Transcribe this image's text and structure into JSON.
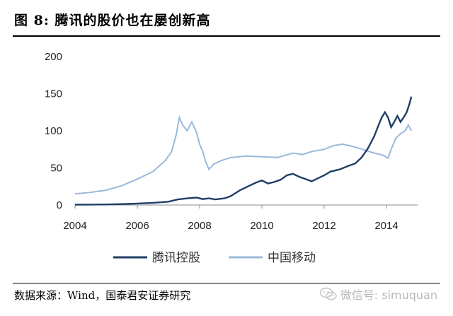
{
  "header": {
    "title": "图 8: 腾讯的股价也在屡创新高"
  },
  "footer": {
    "source": "数据来源：Wind，国泰君安证券研究",
    "watermark": "微信号: simuquan"
  },
  "colors": {
    "tencent": "#1f3f66",
    "china_mobile": "#9bb9db",
    "axis": "#8c8c8c"
  },
  "chart_data": {
    "type": "line",
    "title": "",
    "xlabel": "",
    "ylabel": "",
    "xlim": [
      2004,
      2015
    ],
    "ylim": [
      0,
      200
    ],
    "y_ticks": [
      0,
      50,
      100,
      150,
      200
    ],
    "x_ticks": [
      2004,
      2006,
      2008,
      2010,
      2012,
      2014
    ],
    "grid": false,
    "legend_position": "bottom",
    "series": [
      {
        "name": "腾讯控股",
        "points": [
          [
            2004.0,
            0.5
          ],
          [
            2004.5,
            0.6
          ],
          [
            2005.0,
            0.8
          ],
          [
            2005.5,
            1.2
          ],
          [
            2006.0,
            2.0
          ],
          [
            2006.5,
            3.0
          ],
          [
            2007.0,
            4.5
          ],
          [
            2007.3,
            7.5
          ],
          [
            2007.6,
            9.0
          ],
          [
            2007.9,
            10.0
          ],
          [
            2008.1,
            8.0
          ],
          [
            2008.3,
            9.0
          ],
          [
            2008.5,
            7.5
          ],
          [
            2008.8,
            9.0
          ],
          [
            2009.0,
            12.0
          ],
          [
            2009.3,
            20.0
          ],
          [
            2009.6,
            26.0
          ],
          [
            2009.8,
            30.0
          ],
          [
            2010.0,
            33.0
          ],
          [
            2010.2,
            29.0
          ],
          [
            2010.4,
            31.0
          ],
          [
            2010.6,
            34.0
          ],
          [
            2010.8,
            40.0
          ],
          [
            2011.0,
            42.0
          ],
          [
            2011.2,
            38.0
          ],
          [
            2011.4,
            35.0
          ],
          [
            2011.6,
            32.0
          ],
          [
            2011.8,
            36.0
          ],
          [
            2012.0,
            40.0
          ],
          [
            2012.2,
            45.0
          ],
          [
            2012.5,
            48.0
          ],
          [
            2012.8,
            53.0
          ],
          [
            2013.0,
            56.0
          ],
          [
            2013.2,
            64.0
          ],
          [
            2013.4,
            76.0
          ],
          [
            2013.6,
            92.0
          ],
          [
            2013.75,
            108.0
          ],
          [
            2013.85,
            118.0
          ],
          [
            2013.95,
            125.0
          ],
          [
            2014.05,
            118.0
          ],
          [
            2014.15,
            105.0
          ],
          [
            2014.25,
            112.0
          ],
          [
            2014.35,
            120.0
          ],
          [
            2014.45,
            112.0
          ],
          [
            2014.55,
            118.0
          ],
          [
            2014.65,
            125.0
          ],
          [
            2014.75,
            138.0
          ],
          [
            2014.8,
            146.0
          ]
        ]
      },
      {
        "name": "中国移动",
        "points": [
          [
            2004.0,
            15.0
          ],
          [
            2004.5,
            17.0
          ],
          [
            2005.0,
            20.0
          ],
          [
            2005.5,
            26.0
          ],
          [
            2006.0,
            35.0
          ],
          [
            2006.5,
            45.0
          ],
          [
            2006.9,
            60.0
          ],
          [
            2007.1,
            72.0
          ],
          [
            2007.25,
            95.0
          ],
          [
            2007.35,
            118.0
          ],
          [
            2007.45,
            108.0
          ],
          [
            2007.6,
            100.0
          ],
          [
            2007.75,
            112.0
          ],
          [
            2007.9,
            98.0
          ],
          [
            2008.0,
            82.0
          ],
          [
            2008.1,
            72.0
          ],
          [
            2008.2,
            58.0
          ],
          [
            2008.3,
            48.0
          ],
          [
            2008.45,
            55.0
          ],
          [
            2008.7,
            60.0
          ],
          [
            2009.0,
            64.0
          ],
          [
            2009.5,
            66.0
          ],
          [
            2010.0,
            65.0
          ],
          [
            2010.5,
            64.0
          ],
          [
            2011.0,
            70.0
          ],
          [
            2011.3,
            68.0
          ],
          [
            2011.6,
            72.0
          ],
          [
            2012.0,
            75.0
          ],
          [
            2012.3,
            80.0
          ],
          [
            2012.6,
            82.0
          ],
          [
            2013.0,
            78.0
          ],
          [
            2013.3,
            74.0
          ],
          [
            2013.6,
            70.0
          ],
          [
            2013.9,
            67.0
          ],
          [
            2014.05,
            63.0
          ],
          [
            2014.15,
            75.0
          ],
          [
            2014.3,
            90.0
          ],
          [
            2014.45,
            96.0
          ],
          [
            2014.6,
            100.0
          ],
          [
            2014.7,
            108.0
          ],
          [
            2014.8,
            100.0
          ]
        ]
      }
    ]
  }
}
